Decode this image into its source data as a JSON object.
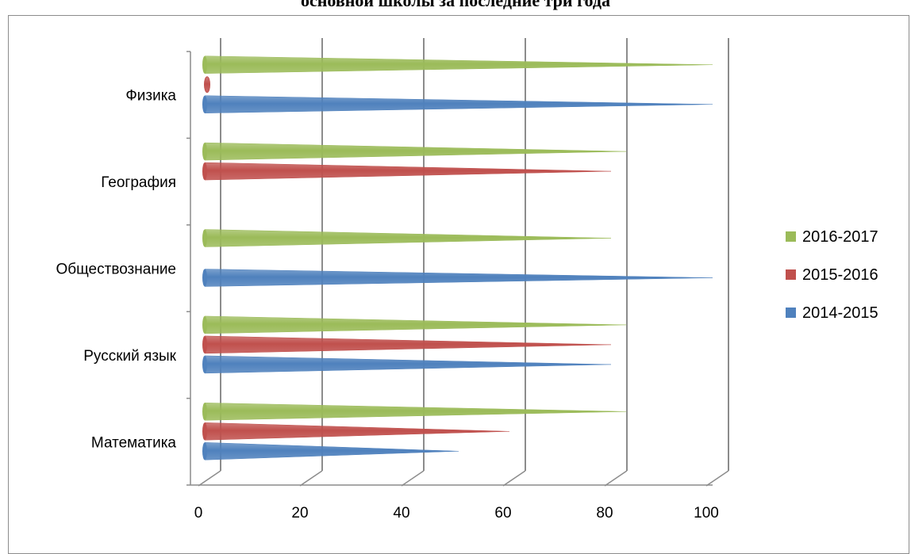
{
  "chart_data": {
    "type": "bar",
    "title": "основной школы за последние три года",
    "categories": [
      "Физика",
      "География",
      "Обществознание",
      "Русский язык",
      "Математика"
    ],
    "series": [
      {
        "name": "2016-2017",
        "color": "#9bbb59",
        "values": [
          100,
          83,
          80,
          83,
          83
        ]
      },
      {
        "name": "2015-2016",
        "color": "#c0504d",
        "values": [
          1,
          80,
          null,
          80,
          60
        ]
      },
      {
        "name": "2014-2015",
        "color": "#4f81bd",
        "values": [
          100,
          null,
          100,
          80,
          50
        ]
      }
    ],
    "x_ticks": [
      "0",
      "20",
      "40",
      "60",
      "80",
      "100"
    ],
    "xlim": [
      0,
      100
    ],
    "legend_position": "right",
    "grid": true
  }
}
